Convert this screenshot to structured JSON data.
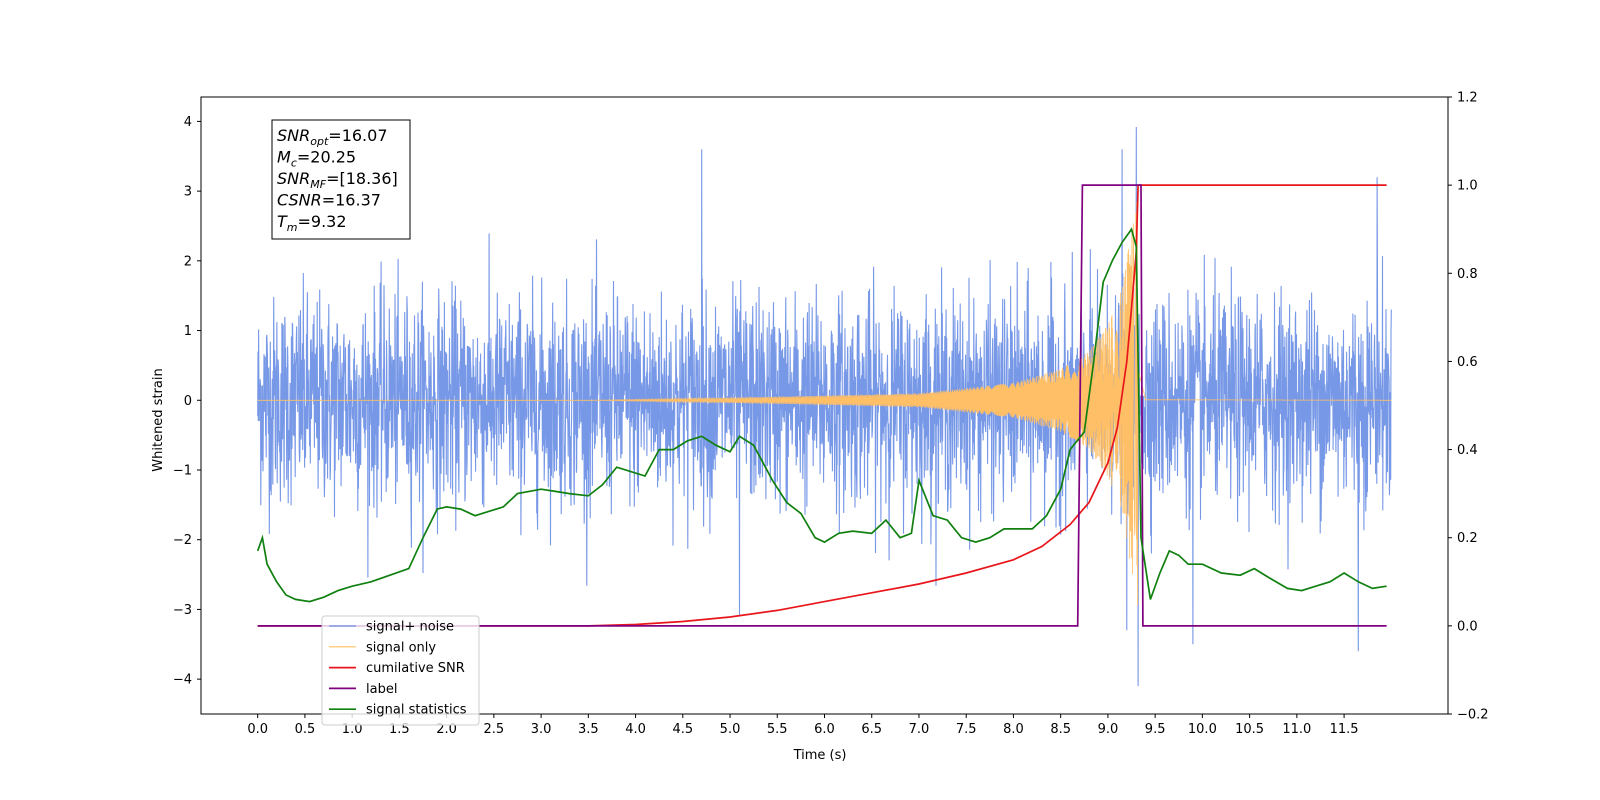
{
  "chart_data": {
    "type": "line",
    "xlabel": "Time (s)",
    "ylabel": "Whitened strain",
    "xlim": [
      -0.6,
      12.6
    ],
    "ylim": [
      -4.5,
      4.35
    ],
    "ylim_right": [
      -0.2,
      1.2
    ],
    "x_ticks": [
      "0.0",
      "0.5",
      "1.0",
      "1.5",
      "2.0",
      "2.5",
      "3.0",
      "3.5",
      "4.0",
      "4.5",
      "5.0",
      "5.5",
      "6.0",
      "6.5",
      "7.0",
      "7.5",
      "8.0",
      "8.5",
      "9.0",
      "9.5",
      "10.0",
      "10.5",
      "11.0",
      "11.5"
    ],
    "y_ticks_left": [
      "4",
      "3",
      "2",
      "1",
      "0",
      "−1",
      "−2",
      "−3",
      "−4"
    ],
    "y_ticks_right": [
      "1.2",
      "1.0",
      "0.8",
      "0.6",
      "0.4",
      "0.2",
      "0.0",
      "−0.2"
    ],
    "grid": false,
    "legend_position": "bottom-left",
    "annotation": {
      "lines": [
        {
          "sym": "SNR",
          "sub": "opt",
          "val": "=16.07"
        },
        {
          "sym": "M",
          "sub": "c",
          "val": "=20.25"
        },
        {
          "sym": "SNR",
          "sub": "MF",
          "val": "=[18.36]"
        },
        {
          "sym": "CSNR",
          "sub": "",
          "val": "=16.37"
        },
        {
          "sym": "T",
          "sub": "m",
          "val": "=9.32"
        }
      ]
    },
    "series": [
      {
        "name": "signal+ noise",
        "color": "#7092e6",
        "axis": "left",
        "kind": "noisy",
        "x_range": [
          0.0,
          12.0
        ],
        "typical_amplitude": 1.9,
        "peaks": [
          [
            4.7,
            3.6
          ],
          [
            9.15,
            3.6
          ],
          [
            9.3,
            3.92
          ],
          [
            11.85,
            3.2
          ],
          [
            9.32,
            -4.1
          ],
          [
            11.65,
            -3.6
          ],
          [
            9.9,
            -3.5
          ],
          [
            5.1,
            -3.1
          ],
          [
            9.2,
            -3.3
          ]
        ]
      },
      {
        "name": "signal only",
        "color": "#ffbf66",
        "axis": "left",
        "kind": "chirp",
        "x_range": [
          0.0,
          12.0
        ],
        "merger_time": 9.32,
        "envelope": [
          [
            0.0,
            0.0
          ],
          [
            3.5,
            0.0
          ],
          [
            5.5,
            0.05
          ],
          [
            7.0,
            0.1
          ],
          [
            8.0,
            0.25
          ],
          [
            8.5,
            0.45
          ],
          [
            8.8,
            0.7
          ],
          [
            9.0,
            1.1
          ],
          [
            9.15,
            1.6
          ],
          [
            9.28,
            2.7
          ],
          [
            9.32,
            3.0
          ],
          [
            9.4,
            0.05
          ],
          [
            12.0,
            0.0
          ]
        ]
      },
      {
        "name": "cumilative SNR",
        "color": "#e8161b",
        "axis": "right",
        "points": [
          [
            0.0,
            0.0
          ],
          [
            3.5,
            0.0
          ],
          [
            4.0,
            0.003
          ],
          [
            4.5,
            0.01
          ],
          [
            5.0,
            0.02
          ],
          [
            5.5,
            0.035
          ],
          [
            6.0,
            0.055
          ],
          [
            6.5,
            0.075
          ],
          [
            7.0,
            0.095
          ],
          [
            7.5,
            0.12
          ],
          [
            8.0,
            0.15
          ],
          [
            8.3,
            0.18
          ],
          [
            8.6,
            0.23
          ],
          [
            8.8,
            0.28
          ],
          [
            9.0,
            0.37
          ],
          [
            9.1,
            0.45
          ],
          [
            9.2,
            0.6
          ],
          [
            9.25,
            0.72
          ],
          [
            9.3,
            0.85
          ],
          [
            9.32,
            1.0
          ],
          [
            11.95,
            1.0
          ]
        ]
      },
      {
        "name": "label",
        "color": "#800080",
        "axis": "right",
        "points": [
          [
            0.0,
            0.0
          ],
          [
            8.68,
            0.0
          ],
          [
            8.73,
            1.0
          ],
          [
            9.35,
            1.0
          ],
          [
            9.37,
            0.0
          ],
          [
            11.95,
            0.0
          ]
        ]
      },
      {
        "name": "signal statistics",
        "color": "#108010",
        "axis": "right",
        "points": [
          [
            0.0,
            0.17
          ],
          [
            0.05,
            0.2
          ],
          [
            0.1,
            0.14
          ],
          [
            0.2,
            0.1
          ],
          [
            0.3,
            0.07
          ],
          [
            0.4,
            0.06
          ],
          [
            0.55,
            0.055
          ],
          [
            0.7,
            0.065
          ],
          [
            0.85,
            0.08
          ],
          [
            1.0,
            0.09
          ],
          [
            1.2,
            0.1
          ],
          [
            1.4,
            0.115
          ],
          [
            1.6,
            0.13
          ],
          [
            1.75,
            0.2
          ],
          [
            1.9,
            0.265
          ],
          [
            2.0,
            0.27
          ],
          [
            2.15,
            0.265
          ],
          [
            2.3,
            0.25
          ],
          [
            2.45,
            0.26
          ],
          [
            2.6,
            0.27
          ],
          [
            2.75,
            0.3
          ],
          [
            3.0,
            0.31
          ],
          [
            3.15,
            0.305
          ],
          [
            3.3,
            0.3
          ],
          [
            3.5,
            0.295
          ],
          [
            3.65,
            0.32
          ],
          [
            3.8,
            0.36
          ],
          [
            3.95,
            0.35
          ],
          [
            4.1,
            0.34
          ],
          [
            4.25,
            0.4
          ],
          [
            4.4,
            0.4
          ],
          [
            4.55,
            0.42
          ],
          [
            4.7,
            0.43
          ],
          [
            4.85,
            0.41
          ],
          [
            5.0,
            0.395
          ],
          [
            5.1,
            0.43
          ],
          [
            5.25,
            0.41
          ],
          [
            5.45,
            0.33
          ],
          [
            5.6,
            0.28
          ],
          [
            5.75,
            0.255
          ],
          [
            5.9,
            0.2
          ],
          [
            6.0,
            0.19
          ],
          [
            6.15,
            0.21
          ],
          [
            6.3,
            0.215
          ],
          [
            6.5,
            0.21
          ],
          [
            6.65,
            0.24
          ],
          [
            6.8,
            0.2
          ],
          [
            6.92,
            0.21
          ],
          [
            7.0,
            0.33
          ],
          [
            7.15,
            0.25
          ],
          [
            7.3,
            0.24
          ],
          [
            7.45,
            0.2
          ],
          [
            7.6,
            0.19
          ],
          [
            7.75,
            0.2
          ],
          [
            7.9,
            0.22
          ],
          [
            8.05,
            0.22
          ],
          [
            8.2,
            0.22
          ],
          [
            8.35,
            0.25
          ],
          [
            8.5,
            0.31
          ],
          [
            8.6,
            0.4
          ],
          [
            8.75,
            0.44
          ],
          [
            8.85,
            0.6
          ],
          [
            8.95,
            0.78
          ],
          [
            9.05,
            0.83
          ],
          [
            9.15,
            0.87
          ],
          [
            9.25,
            0.9
          ],
          [
            9.3,
            0.86
          ],
          [
            9.35,
            0.2
          ],
          [
            9.45,
            0.06
          ],
          [
            9.55,
            0.12
          ],
          [
            9.65,
            0.17
          ],
          [
            9.75,
            0.16
          ],
          [
            9.85,
            0.14
          ],
          [
            10.0,
            0.14
          ],
          [
            10.2,
            0.12
          ],
          [
            10.4,
            0.115
          ],
          [
            10.55,
            0.13
          ],
          [
            10.7,
            0.11
          ],
          [
            10.9,
            0.085
          ],
          [
            11.05,
            0.08
          ],
          [
            11.2,
            0.09
          ],
          [
            11.35,
            0.1
          ],
          [
            11.5,
            0.12
          ],
          [
            11.65,
            0.1
          ],
          [
            11.8,
            0.085
          ],
          [
            11.95,
            0.09
          ]
        ]
      }
    ]
  }
}
